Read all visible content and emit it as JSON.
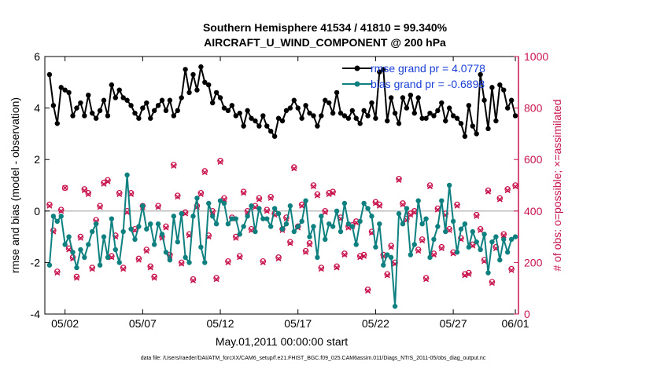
{
  "chart_data": {
    "type": "line",
    "title": "Southern Hemisphere 41534 / 41810 = 99.340%",
    "subtitle": "AIRCRAFT_U_WIND_COMPONENT @ 200 hPa",
    "xlabel": "May.01,2011 00:00:00 start",
    "ylabel": "rmse and bias (model - observation)",
    "ylabel_right": "# of obs: o=possible; ×=assimilated",
    "footer": "data file: /Users/raeder/DAI/ATM_forcXX/CAM6_setup/f.e21.FHIST_BGC.f09_025.CAM6assim.011/Diags_NTrS_2011-05/obs_diag_output.nc",
    "xlim": [
      0.7,
      31.2
    ],
    "ylim": [
      -4,
      6
    ],
    "ylim_right": [
      0,
      1000
    ],
    "x_ticks": [
      {
        "x": 2,
        "label": "05/02"
      },
      {
        "x": 7,
        "label": "05/07"
      },
      {
        "x": 12,
        "label": "05/12"
      },
      {
        "x": 17,
        "label": "05/17"
      },
      {
        "x": 22,
        "label": "05/22"
      },
      {
        "x": 27,
        "label": "05/27"
      },
      {
        "x": 31,
        "label": "06/01"
      }
    ],
    "y_ticks": [
      -4,
      -2,
      0,
      2,
      4,
      6
    ],
    "y_ticks_right": [
      0,
      200,
      400,
      600,
      800,
      1000
    ],
    "zero_line": 0,
    "series": [
      {
        "name": "rmse grand pr = 4.0778",
        "color": "#000000",
        "marker": "star",
        "x": [
          1.0,
          1.25,
          1.5,
          1.75,
          2.0,
          2.25,
          2.5,
          2.75,
          3.0,
          3.25,
          3.5,
          3.75,
          4.0,
          4.25,
          4.5,
          4.75,
          5.0,
          5.25,
          5.5,
          5.75,
          6.0,
          6.25,
          6.5,
          6.75,
          7.0,
          7.25,
          7.5,
          7.75,
          8.0,
          8.25,
          8.5,
          8.75,
          9.0,
          9.25,
          9.5,
          9.75,
          10.0,
          10.25,
          10.5,
          10.75,
          11.0,
          11.25,
          11.5,
          11.75,
          12.0,
          12.25,
          12.5,
          12.75,
          13.0,
          13.25,
          13.5,
          13.75,
          14.0,
          14.25,
          14.5,
          14.75,
          15.0,
          15.25,
          15.5,
          15.75,
          16.0,
          16.25,
          16.5,
          16.75,
          17.0,
          17.25,
          17.5,
          17.75,
          18.0,
          18.25,
          18.5,
          18.75,
          19.0,
          19.25,
          19.5,
          19.75,
          20.0,
          20.25,
          20.5,
          20.75,
          21.0,
          21.25,
          21.5,
          21.75,
          22.0,
          22.25,
          22.5,
          22.75,
          23.0,
          23.25,
          23.5,
          23.75,
          24.0,
          24.25,
          24.5,
          24.75,
          25.0,
          25.25,
          25.5,
          25.75,
          26.0,
          26.25,
          26.5,
          26.75,
          27.0,
          27.25,
          27.5,
          27.75,
          28.0,
          28.25,
          28.5,
          28.75,
          29.0,
          29.25,
          29.5,
          29.75,
          30.0,
          30.25,
          30.5,
          30.75,
          31.0
        ],
        "y": [
          5.3,
          4.1,
          3.4,
          4.8,
          4.7,
          4.6,
          3.7,
          4.0,
          4.2,
          3.7,
          4.5,
          3.8,
          3.6,
          3.9,
          4.3,
          3.7,
          4.9,
          4.4,
          4.7,
          4.4,
          4.3,
          4.1,
          3.8,
          3.6,
          4.0,
          4.2,
          3.6,
          3.9,
          4.1,
          4.3,
          3.9,
          4.3,
          3.7,
          3.9,
          4.4,
          5.5,
          4.6,
          5.3,
          4.7,
          5.6,
          5.0,
          4.9,
          4.2,
          4.6,
          4.4,
          4.0,
          3.9,
          4.1,
          3.7,
          3.8,
          3.3,
          3.9,
          3.6,
          3.5,
          3.3,
          3.7,
          3.3,
          3.1,
          2.9,
          3.6,
          3.5,
          3.9,
          4.0,
          4.3,
          4.0,
          3.6,
          4.1,
          3.8,
          3.7,
          3.3,
          3.7,
          4.3,
          4.2,
          3.8,
          4.6,
          3.8,
          3.7,
          3.6,
          3.9,
          3.6,
          3.4,
          3.9,
          3.7,
          4.2,
          3.6,
          5.4,
          5.5,
          3.5,
          4.4,
          3.8,
          3.4,
          4.4,
          4.0,
          4.5,
          3.8,
          4.4,
          3.6,
          3.6,
          3.8,
          3.7,
          3.9,
          4.2,
          3.5,
          4.0,
          3.7,
          3.6,
          3.4,
          2.9,
          4.1,
          3.3,
          3.0,
          5.3,
          4.3,
          3.2,
          4.8,
          3.5,
          4.9,
          4.7,
          4.0,
          4.3,
          3.7
        ]
      },
      {
        "name": "bias grand pr = -0.6898",
        "color": "#0f8080",
        "marker": "star",
        "x": [
          1.0,
          1.25,
          1.5,
          1.75,
          2.0,
          2.25,
          2.5,
          2.75,
          3.0,
          3.25,
          3.5,
          3.75,
          4.0,
          4.25,
          4.5,
          4.75,
          5.0,
          5.25,
          5.5,
          5.75,
          6.0,
          6.25,
          6.5,
          6.75,
          7.0,
          7.25,
          7.5,
          7.75,
          8.0,
          8.25,
          8.5,
          8.75,
          9.0,
          9.25,
          9.5,
          9.75,
          10.0,
          10.25,
          10.5,
          10.75,
          11.0,
          11.25,
          11.5,
          11.75,
          12.0,
          12.25,
          12.5,
          12.75,
          13.0,
          13.25,
          13.5,
          13.75,
          14.0,
          14.25,
          14.5,
          14.75,
          15.0,
          15.25,
          15.5,
          15.75,
          16.0,
          16.25,
          16.5,
          16.75,
          17.0,
          17.25,
          17.5,
          17.75,
          18.0,
          18.25,
          18.5,
          18.75,
          19.0,
          19.25,
          19.5,
          19.75,
          20.0,
          20.25,
          20.5,
          20.75,
          21.0,
          21.25,
          21.5,
          21.75,
          22.0,
          22.25,
          22.5,
          22.75,
          23.0,
          23.25,
          23.5,
          23.75,
          24.0,
          24.25,
          24.5,
          24.75,
          25.0,
          25.25,
          25.5,
          25.75,
          26.0,
          26.25,
          26.5,
          26.75,
          27.0,
          27.25,
          27.5,
          27.75,
          28.0,
          28.25,
          28.5,
          28.75,
          29.0,
          29.25,
          29.5,
          29.75,
          30.0,
          30.25,
          30.5,
          30.75,
          31.0
        ],
        "y": [
          -2.1,
          -0.2,
          -0.4,
          -0.2,
          -1.3,
          -1.0,
          -1.6,
          -2.2,
          -1.5,
          -1.8,
          -1.3,
          -0.8,
          -0.5,
          -2.1,
          -1.0,
          -1.8,
          -0.3,
          -1.5,
          -2.0,
          -0.8,
          1.4,
          -0.7,
          -1.1,
          -0.6,
          0.2,
          -0.7,
          -0.5,
          -1.3,
          -0.5,
          -0.9,
          -1.6,
          -1.9,
          -0.2,
          -1.2,
          -0.1,
          -1.8,
          -2.0,
          -0.2,
          0.5,
          -1.4,
          -2.0,
          0.3,
          -0.2,
          -0.5,
          0.4,
          0.3,
          -0.5,
          -0.3,
          -0.3,
          -0.9,
          -0.6,
          -0.2,
          0.2,
          -0.8,
          0.1,
          -0.3,
          -0.3,
          -0.6,
          0.1,
          -0.1,
          -0.7,
          -0.5,
          0.2,
          -0.8,
          -0.6,
          -0.4,
          0.4,
          -1.0,
          -0.6,
          -1.8,
          -0.2,
          -1.1,
          -0.5,
          -0.6,
          0.0,
          -0.8,
          0.3,
          -0.5,
          -0.6,
          -1.3,
          -0.4,
          0.3,
          0.1,
          -0.2,
          -1.4,
          -0.5,
          -2.1,
          -1.7,
          -1.8,
          -3.7,
          -0.1,
          -0.5,
          0.1,
          -1.7,
          -1.3,
          0.4,
          -0.5,
          -0.3,
          -1.8,
          -1.1,
          -0.6,
          0.4,
          -0.8,
          1.0,
          -0.4,
          -1.6,
          -0.7,
          -0.5,
          -1.4,
          -0.8,
          -1.2,
          -1.5,
          -0.9,
          -2.4,
          -1.2,
          -1.0,
          -1.9,
          -1.1,
          -1.6,
          -1.1,
          -1.0
        ]
      }
    ],
    "obs_possible": {
      "name": "possible",
      "color": "#c8144d",
      "x": [
        1.0,
        1.25,
        1.5,
        1.75,
        2.0,
        2.25,
        2.5,
        2.75,
        3.0,
        3.25,
        3.5,
        3.75,
        4.0,
        4.25,
        4.5,
        4.75,
        5.0,
        5.25,
        5.5,
        5.75,
        6.0,
        6.25,
        6.5,
        6.75,
        7.0,
        7.25,
        7.5,
        7.75,
        8.0,
        8.25,
        8.5,
        8.75,
        9.0,
        9.25,
        9.5,
        9.75,
        10.0,
        10.25,
        10.5,
        10.75,
        11.0,
        11.25,
        11.5,
        11.75,
        12.0,
        12.25,
        12.5,
        12.75,
        13.0,
        13.25,
        13.5,
        13.75,
        14.0,
        14.25,
        14.5,
        14.75,
        15.0,
        15.25,
        15.5,
        15.75,
        16.0,
        16.25,
        16.5,
        16.75,
        17.0,
        17.25,
        17.5,
        17.75,
        18.0,
        18.25,
        18.5,
        18.75,
        19.0,
        19.25,
        19.5,
        19.75,
        20.0,
        20.25,
        20.5,
        20.75,
        21.0,
        21.25,
        21.5,
        21.75,
        22.0,
        22.25,
        22.5,
        22.75,
        23.0,
        23.25,
        23.5,
        23.75,
        24.0,
        24.25,
        24.5,
        24.75,
        25.0,
        25.25,
        25.5,
        25.75,
        26.0,
        26.25,
        26.5,
        26.75,
        27.0,
        27.25,
        27.5,
        27.75,
        28.0,
        28.25,
        28.5,
        28.75,
        29.0,
        29.25,
        29.5,
        29.75,
        30.0,
        30.25,
        30.5,
        30.75,
        31.0
      ],
      "y": [
        425,
        325,
        165,
        405,
        490,
        255,
        220,
        145,
        300,
        485,
        470,
        180,
        365,
        420,
        510,
        520,
        225,
        305,
        470,
        180,
        400,
        470,
        330,
        215,
        420,
        250,
        185,
        145,
        420,
        300,
        340,
        230,
        580,
        460,
        200,
        395,
        310,
        135,
        420,
        470,
        555,
        305,
        400,
        140,
        595,
        450,
        205,
        375,
        300,
        225,
        475,
        400,
        330,
        420,
        450,
        205,
        405,
        455,
        390,
        220,
        330,
        375,
        280,
        570,
        340,
        425,
        245,
        275,
        500,
        465,
        180,
        400,
        470,
        475,
        185,
        375,
        235,
        340,
        345,
        360,
        225,
        230,
        95,
        320,
        435,
        425,
        230,
        155,
        265,
        200,
        525,
        430,
        370,
        390,
        400,
        250,
        290,
        140,
        500,
        235,
        410,
        260,
        390,
        330,
        240,
        425,
        295,
        155,
        160,
        270,
        385,
        330,
        210,
        480,
        125,
        260,
        450,
        310,
        485,
        175,
        500
      ]
    },
    "obs_assimilated": {
      "name": "assimilated",
      "color": "#c8144d",
      "x": [
        1.0,
        1.25,
        1.5,
        1.75,
        2.0,
        2.25,
        2.5,
        2.75,
        3.0,
        3.25,
        3.5,
        3.75,
        4.0,
        4.25,
        4.5,
        4.75,
        5.0,
        5.25,
        5.5,
        5.75,
        6.0,
        6.25,
        6.5,
        6.75,
        7.0,
        7.25,
        7.5,
        7.75,
        8.0,
        8.25,
        8.5,
        8.75,
        9.0,
        9.25,
        9.5,
        9.75,
        10.0,
        10.25,
        10.5,
        10.75,
        11.0,
        11.25,
        11.5,
        11.75,
        12.0,
        12.25,
        12.5,
        12.75,
        13.0,
        13.25,
        13.5,
        13.75,
        14.0,
        14.25,
        14.5,
        14.75,
        15.0,
        15.25,
        15.5,
        15.75,
        16.0,
        16.25,
        16.5,
        16.75,
        17.0,
        17.25,
        17.5,
        17.75,
        18.0,
        18.25,
        18.5,
        18.75,
        19.0,
        19.25,
        19.5,
        19.75,
        20.0,
        20.25,
        20.5,
        20.75,
        21.0,
        21.25,
        21.5,
        21.75,
        22.0,
        22.25,
        22.5,
        22.75,
        23.0,
        23.25,
        23.5,
        23.75,
        24.0,
        24.25,
        24.5,
        24.75,
        25.0,
        25.25,
        25.5,
        25.75,
        26.0,
        26.25,
        26.5,
        26.75,
        27.0,
        27.25,
        27.5,
        27.75,
        28.0,
        28.25,
        28.5,
        28.75,
        29.0,
        29.25,
        29.5,
        29.75,
        30.0,
        30.25,
        30.5,
        30.75,
        31.0
      ],
      "y": [
        420,
        320,
        160,
        400,
        490,
        250,
        215,
        140,
        295,
        480,
        465,
        175,
        360,
        415,
        505,
        515,
        220,
        300,
        465,
        175,
        395,
        465,
        325,
        210,
        415,
        245,
        180,
        140,
        415,
        295,
        335,
        225,
        575,
        455,
        195,
        390,
        305,
        130,
        415,
        465,
        550,
        300,
        395,
        135,
        590,
        445,
        200,
        370,
        295,
        220,
        470,
        395,
        325,
        415,
        445,
        200,
        400,
        450,
        385,
        215,
        325,
        370,
        275,
        565,
        335,
        420,
        240,
        270,
        495,
        460,
        175,
        395,
        465,
        470,
        180,
        370,
        230,
        335,
        340,
        355,
        220,
        225,
        90,
        315,
        430,
        420,
        225,
        150,
        260,
        195,
        520,
        425,
        365,
        385,
        395,
        245,
        285,
        135,
        495,
        230,
        405,
        255,
        385,
        325,
        235,
        420,
        290,
        150,
        155,
        265,
        380,
        325,
        205,
        475,
        120,
        255,
        445,
        305,
        480,
        170,
        495
      ]
    },
    "legend": {
      "placement": "top-right",
      "entries": [
        "rmse grand pr = 4.0778",
        "bias grand pr = -0.6898"
      ]
    }
  }
}
